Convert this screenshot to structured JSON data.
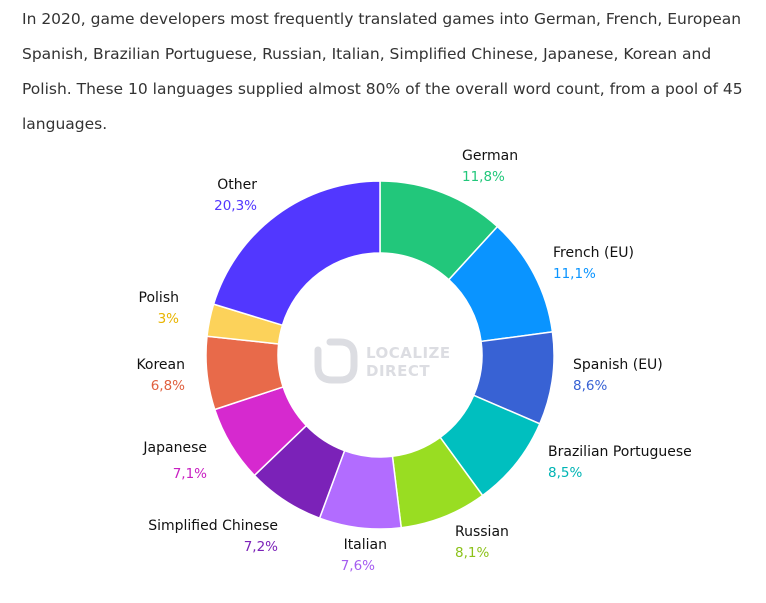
{
  "intro": {
    "text": "In 2020, game developers most frequently translated games into German, French, European Spanish, Brazilian Portuguese, Russian, Italian, Simplified Chinese, Japanese, Korean and Polish. These 10 languages supplied almost 80% of the overall word count, from a pool of 45 languages."
  },
  "watermark": {
    "line1": "LOCALIZE",
    "line2": "DIRECT"
  },
  "chart_data": {
    "type": "pie",
    "variant": "donut",
    "title": "",
    "unit": "%",
    "slices": [
      {
        "label": "German",
        "value": 11.8,
        "value_text": "11,8%",
        "color": "#22c77b"
      },
      {
        "label": "French (EU)",
        "value": 11.1,
        "value_text": "11,1%",
        "color": "#0a94ff"
      },
      {
        "label": "Spanish (EU)",
        "value": 8.6,
        "value_text": "8,6%",
        "color": "#3862d4"
      },
      {
        "label": "Brazilian Portuguese",
        "value": 8.5,
        "value_text": "8,5%",
        "color": "#00bfbf"
      },
      {
        "label": "Russian",
        "value": 8.1,
        "value_text": "8,1%",
        "color": "#99dd22"
      },
      {
        "label": "Italian",
        "value": 7.6,
        "value_text": "7,6%",
        "color": "#b26cff"
      },
      {
        "label": "Simplified Chinese",
        "value": 7.2,
        "value_text": "7,2%",
        "color": "#7b22b8"
      },
      {
        "label": "Japanese",
        "value": 7.1,
        "value_text": "7,1%",
        "color": "#d629cf"
      },
      {
        "label": "Korean",
        "value": 6.8,
        "value_text": "6,8%",
        "color": "#e86a4a"
      },
      {
        "label": "Polish",
        "value": 3.0,
        "value_text": "3%",
        "color": "#fcd25a"
      },
      {
        "label": "Other",
        "value": 20.3,
        "value_text": "20,3%",
        "color": "#5237ff"
      }
    ],
    "value_label_colors": {
      "German": "#22c77b",
      "French (EU)": "#0a94ff",
      "Spanish (EU)": "#3862d4",
      "Brazilian Portuguese": "#00b4b4",
      "Russian": "#8cc21a",
      "Italian": "#a55cf0",
      "Simplified Chinese": "#7b22b8",
      "Japanese": "#c820c2",
      "Korean": "#e0603f",
      "Polish": "#e8b400",
      "Other": "#5237ff"
    },
    "start": "12 o'clock",
    "direction": "clockwise"
  }
}
